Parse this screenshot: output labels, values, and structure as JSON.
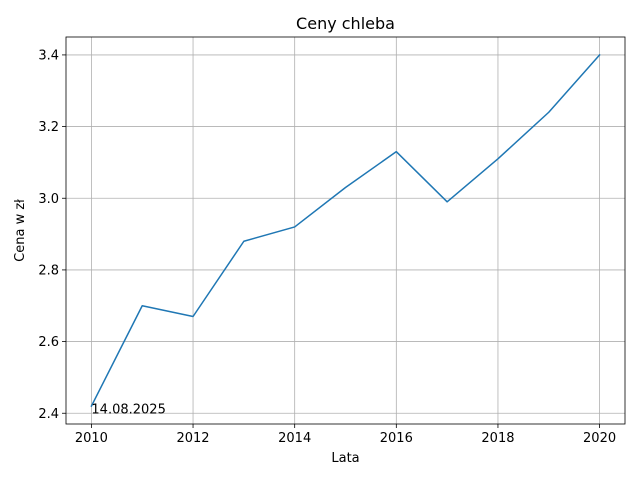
{
  "chart_data": {
    "type": "line",
    "title": "Ceny chleba",
    "xlabel": "Lata",
    "ylabel": "Cena w zł",
    "x": [
      2010,
      2011,
      2012,
      2013,
      2014,
      2015,
      2016,
      2017,
      2018,
      2019,
      2020
    ],
    "series": [
      {
        "values": [
          2.42,
          2.7,
          2.67,
          2.88,
          2.92,
          3.03,
          3.13,
          2.99,
          3.11,
          3.24,
          3.4
        ],
        "color": "#1f77b4"
      }
    ],
    "xlim": [
      2009.5,
      2020.5
    ],
    "ylim": [
      2.37,
      3.45
    ],
    "x_ticks": [
      2010,
      2012,
      2014,
      2016,
      2018,
      2020
    ],
    "x_tick_labels": [
      "2010",
      "2012",
      "2014",
      "2016",
      "2018",
      "2020"
    ],
    "y_ticks": [
      2.4,
      2.6,
      2.8,
      3.0,
      3.2,
      3.4
    ],
    "y_tick_labels": [
      "2.4",
      "2.6",
      "2.8",
      "3.0",
      "3.2",
      "3.4"
    ],
    "grid": true,
    "annotation": {
      "text": "14.08.2025",
      "x": 2010,
      "y": 2.4
    }
  }
}
